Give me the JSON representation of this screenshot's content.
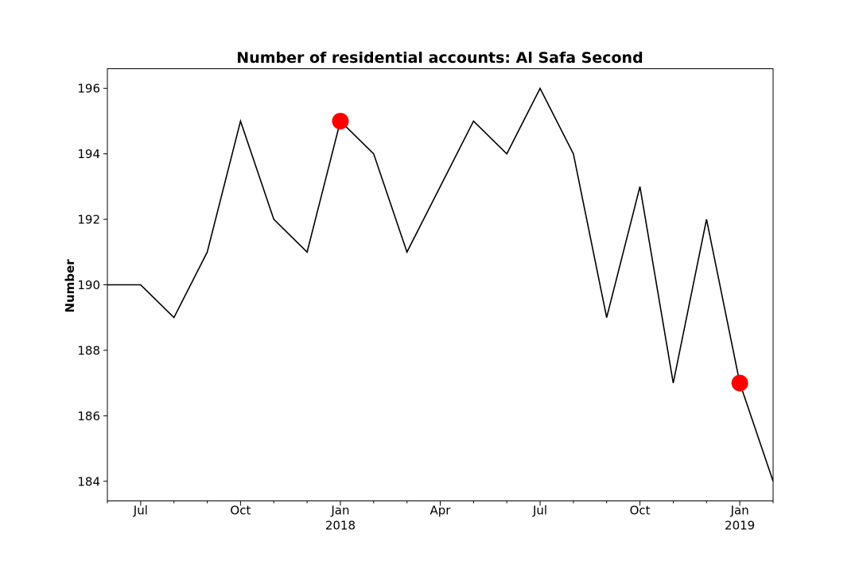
{
  "chart_data": {
    "type": "line",
    "title": "Number of residential accounts: Al Safa Second",
    "xlabel": "",
    "ylabel": "Number",
    "ylim": [
      183.4,
      196.6
    ],
    "yticks": [
      184,
      186,
      188,
      190,
      192,
      194,
      196
    ],
    "x_months": [
      "2017-06",
      "2017-07",
      "2017-08",
      "2017-09",
      "2017-10",
      "2017-11",
      "2017-12",
      "2018-01",
      "2018-02",
      "2018-03",
      "2018-04",
      "2018-05",
      "2018-06",
      "2018-07",
      "2018-08",
      "2018-09",
      "2018-10",
      "2018-11",
      "2018-12",
      "2019-01",
      "2019-02"
    ],
    "series": [
      {
        "values": [
          190,
          190,
          189,
          191,
          195,
          192,
          191,
          195,
          194,
          191,
          193,
          195,
          194,
          196,
          194,
          189,
          193,
          187,
          192,
          187,
          184
        ]
      }
    ],
    "highlighted_points": [
      {
        "x": "2018-01",
        "y": 195
      },
      {
        "x": "2019-01",
        "y": 187
      }
    ],
    "x_major_ticks": [
      {
        "month": "2017-07",
        "label": "Jul",
        "sublabel": ""
      },
      {
        "month": "2017-10",
        "label": "Oct",
        "sublabel": ""
      },
      {
        "month": "2018-01",
        "label": "Jan",
        "sublabel": "2018"
      },
      {
        "month": "2018-04",
        "label": "Apr",
        "sublabel": ""
      },
      {
        "month": "2018-07",
        "label": "Jul",
        "sublabel": ""
      },
      {
        "month": "2018-10",
        "label": "Oct",
        "sublabel": ""
      },
      {
        "month": "2019-01",
        "label": "Jan",
        "sublabel": "2019"
      }
    ],
    "grid": false,
    "line_color": "#000000",
    "highlight_color": "#ff0000"
  }
}
